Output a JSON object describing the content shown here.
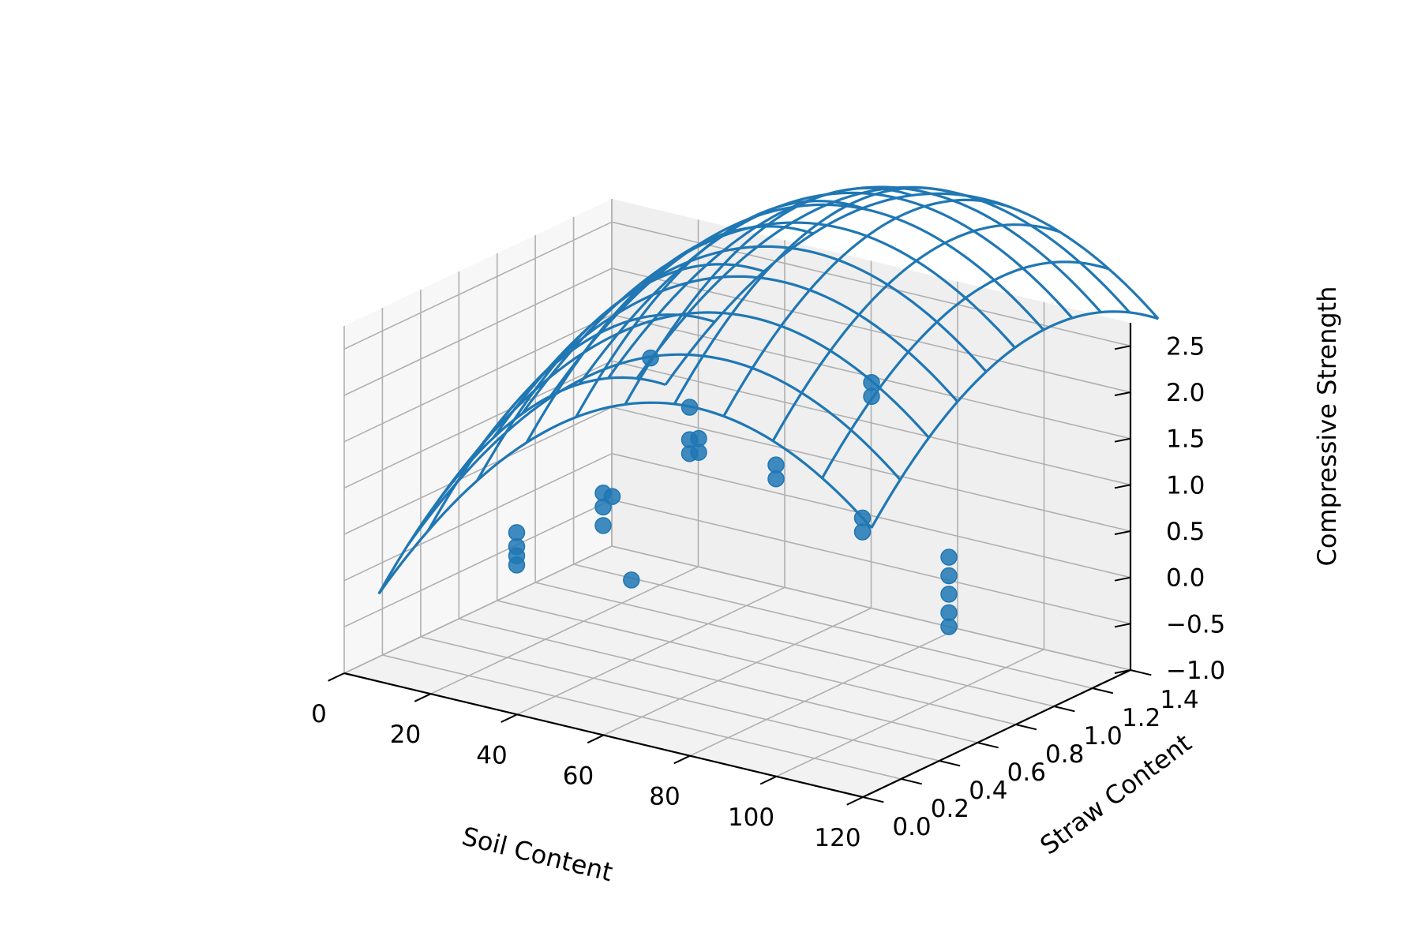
{
  "chart_data": {
    "type": "scatter",
    "subtype": "3d-scatter-with-wireframe-surface",
    "xlabel": "Soil Content",
    "ylabel": "Straw Content",
    "zlabel": "Compressive Strength",
    "xlim": [
      0,
      120
    ],
    "ylim": [
      0,
      1.4
    ],
    "zlim": [
      -1.0,
      2.75
    ],
    "x_ticks": [
      "0",
      "20",
      "40",
      "60",
      "80",
      "100",
      "120"
    ],
    "y_ticks": [
      "0.0",
      "0.2",
      "0.4",
      "0.6",
      "0.8",
      "1.0",
      "1.2",
      "1.4"
    ],
    "z_ticks": [
      "−1.0",
      "−0.5",
      "0.0",
      "0.5",
      "1.0",
      "1.5",
      "2.0",
      "2.5"
    ],
    "grid": true,
    "color": "#1f77b4",
    "surface": {
      "kind": "wireframe",
      "model": "z = -0.7 + 0.085*x - 0.00052*x^2 + 2.7*y - 1.45*y^2",
      "x_range": [
        8,
        122
      ],
      "y_range": [
        0.0,
        1.5
      ],
      "rows": 11,
      "cols": 11
    },
    "points": [
      {
        "x": 20,
        "y": 0.45,
        "z": 0.3
      },
      {
        "x": 20,
        "y": 0.45,
        "z": 0.15
      },
      {
        "x": 20,
        "y": 0.45,
        "z": 0.05
      },
      {
        "x": 20,
        "y": 0.45,
        "z": -0.05
      },
      {
        "x": 20,
        "y": 0.95,
        "z": 0.2
      },
      {
        "x": 20,
        "y": 1.05,
        "z": -0.8
      },
      {
        "x": 20,
        "y": 1.15,
        "z": 1.5
      },
      {
        "x": 40,
        "y": 0.45,
        "z": 0.95
      },
      {
        "x": 40,
        "y": 0.45,
        "z": 0.8
      },
      {
        "x": 40,
        "y": 0.45,
        "z": 0.6
      },
      {
        "x": 40,
        "y": 0.95,
        "z": 1.05
      },
      {
        "x": 40,
        "y": 0.95,
        "z": 0.9
      },
      {
        "x": 60,
        "y": 0.45,
        "z": 2.1
      },
      {
        "x": 60,
        "y": 0.45,
        "z": 1.75
      },
      {
        "x": 60,
        "y": 0.45,
        "z": 1.6
      },
      {
        "x": 80,
        "y": 0.95,
        "z": 2.1
      },
      {
        "x": 80,
        "y": 0.95,
        "z": 1.95
      },
      {
        "x": 80,
        "y": 0.45,
        "z": 1.7
      },
      {
        "x": 80,
        "y": 0.45,
        "z": 1.55
      },
      {
        "x": 100,
        "y": 0.45,
        "z": 1.35
      },
      {
        "x": 100,
        "y": 0.45,
        "z": 1.2
      },
      {
        "x": 120,
        "y": 0.45,
        "z": 1.15
      },
      {
        "x": 120,
        "y": 0.45,
        "z": 0.95
      },
      {
        "x": 120,
        "y": 0.45,
        "z": 0.75
      },
      {
        "x": 120,
        "y": 0.45,
        "z": 0.55
      },
      {
        "x": 120,
        "y": 0.45,
        "z": 0.4
      }
    ]
  }
}
